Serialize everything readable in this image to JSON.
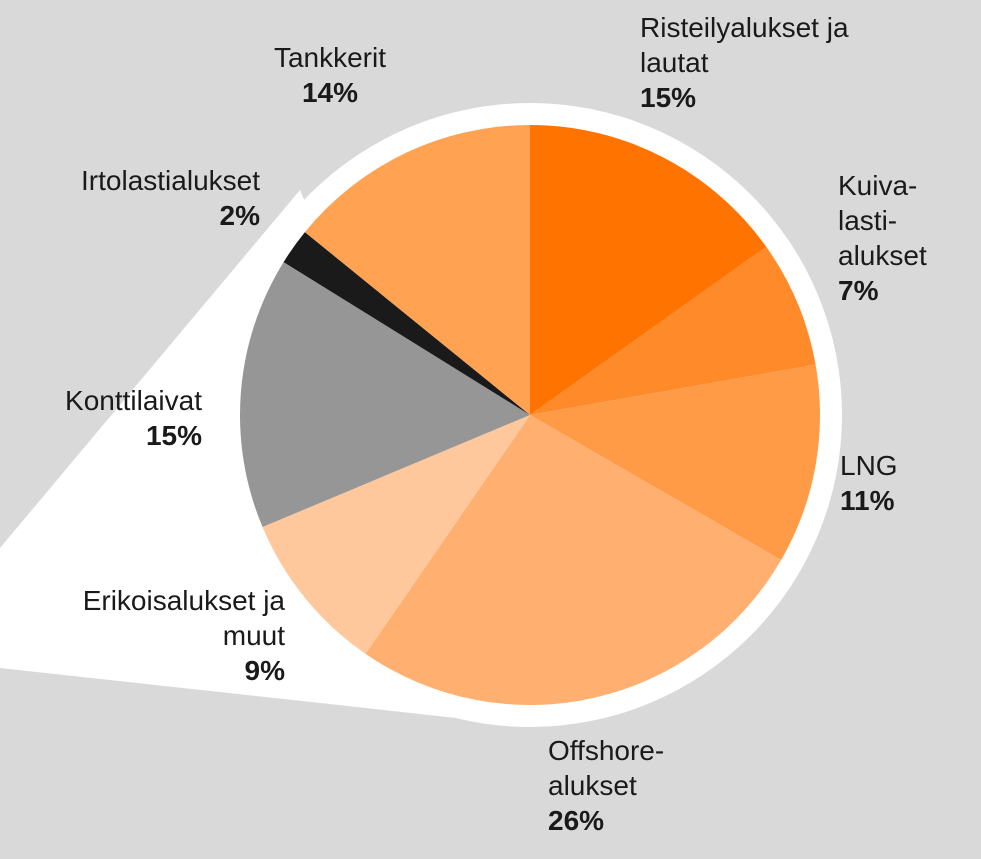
{
  "chart_data": {
    "type": "pie",
    "categories": [
      "Risteilyalukset ja lautat",
      "Kuiva-lasti-alukset",
      "LNG",
      "Offshore-alukset",
      "Erikoisalukset ja muut",
      "Konttilaivat",
      "Irtolastialukset",
      "Tankkerit"
    ],
    "values": [
      15,
      7,
      11,
      26,
      9,
      15,
      2,
      14
    ],
    "value_labels": [
      "15%",
      "7%",
      "11%",
      "26%",
      "9%",
      "15%",
      "2%",
      "14%"
    ],
    "colors": [
      "#ff7300",
      "#ff8a2a",
      "#ff9a46",
      "#ffb070",
      "#ffc89c",
      "#969696",
      "#1a1a1a",
      "#ffa352"
    ]
  }
}
